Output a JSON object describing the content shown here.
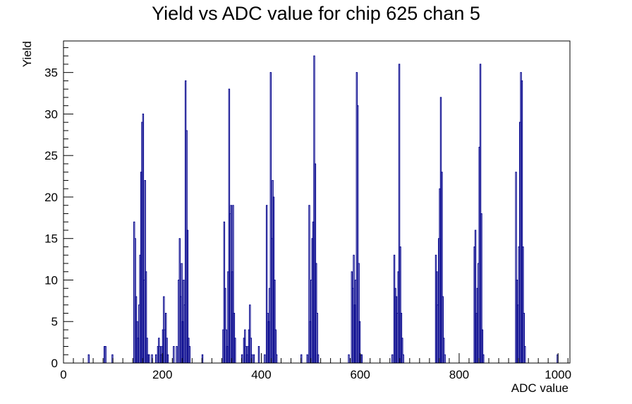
{
  "chart_data": {
    "type": "bar",
    "title": "Yield vs ADC value for chip 625 chan 5",
    "xlabel": "ADC value",
    "ylabel": "Yield",
    "xlim": [
      0,
      1024
    ],
    "ylim": [
      0,
      38.8
    ],
    "x_ticks": [
      0,
      200,
      400,
      600,
      800,
      1000
    ],
    "y_ticks": [
      0,
      5,
      10,
      15,
      20,
      25,
      30,
      35
    ],
    "line_color": "#00008b",
    "bin_width": 2,
    "bins": [
      [
        50,
        1
      ],
      [
        82,
        2
      ],
      [
        84,
        2
      ],
      [
        98,
        1
      ],
      [
        142,
        17
      ],
      [
        144,
        15
      ],
      [
        146,
        8
      ],
      [
        148,
        5
      ],
      [
        150,
        3
      ],
      [
        152,
        7
      ],
      [
        154,
        13
      ],
      [
        156,
        23
      ],
      [
        158,
        29
      ],
      [
        160,
        30
      ],
      [
        162,
        10
      ],
      [
        164,
        22
      ],
      [
        166,
        11
      ],
      [
        168,
        3
      ],
      [
        170,
        1
      ],
      [
        172,
        1
      ],
      [
        178,
        1
      ],
      [
        186,
        1
      ],
      [
        190,
        2
      ],
      [
        192,
        3
      ],
      [
        194,
        2
      ],
      [
        196,
        1
      ],
      [
        198,
        2
      ],
      [
        200,
        4
      ],
      [
        202,
        8
      ],
      [
        204,
        4
      ],
      [
        206,
        6
      ],
      [
        208,
        3
      ],
      [
        210,
        1
      ],
      [
        222,
        2
      ],
      [
        228,
        2
      ],
      [
        232,
        10
      ],
      [
        234,
        15
      ],
      [
        236,
        8
      ],
      [
        238,
        12
      ],
      [
        240,
        5
      ],
      [
        242,
        10
      ],
      [
        244,
        7
      ],
      [
        246,
        34
      ],
      [
        248,
        28
      ],
      [
        250,
        16
      ],
      [
        252,
        3
      ],
      [
        254,
        2
      ],
      [
        280,
        1
      ],
      [
        322,
        4
      ],
      [
        324,
        17
      ],
      [
        326,
        9
      ],
      [
        328,
        4
      ],
      [
        330,
        2
      ],
      [
        332,
        11
      ],
      [
        334,
        33
      ],
      [
        336,
        18
      ],
      [
        338,
        19
      ],
      [
        340,
        11
      ],
      [
        342,
        19
      ],
      [
        344,
        6
      ],
      [
        346,
        3
      ],
      [
        360,
        1
      ],
      [
        364,
        3
      ],
      [
        366,
        4
      ],
      [
        368,
        2
      ],
      [
        370,
        1
      ],
      [
        372,
        2
      ],
      [
        374,
        4
      ],
      [
        376,
        7
      ],
      [
        378,
        3
      ],
      [
        380,
        1
      ],
      [
        384,
        1
      ],
      [
        394,
        2
      ],
      [
        406,
        1
      ],
      [
        410,
        19
      ],
      [
        412,
        6
      ],
      [
        414,
        5
      ],
      [
        416,
        9
      ],
      [
        418,
        35
      ],
      [
        420,
        15
      ],
      [
        422,
        22
      ],
      [
        424,
        20
      ],
      [
        426,
        10
      ],
      [
        428,
        4
      ],
      [
        430,
        1
      ],
      [
        480,
        1
      ],
      [
        492,
        1
      ],
      [
        496,
        19
      ],
      [
        498,
        5
      ],
      [
        500,
        10
      ],
      [
        502,
        15
      ],
      [
        504,
        17
      ],
      [
        506,
        37
      ],
      [
        508,
        24
      ],
      [
        510,
        12
      ],
      [
        512,
        6
      ],
      [
        514,
        1
      ],
      [
        576,
        1
      ],
      [
        582,
        11
      ],
      [
        584,
        9
      ],
      [
        586,
        13
      ],
      [
        588,
        7
      ],
      [
        590,
        10
      ],
      [
        592,
        35
      ],
      [
        594,
        31
      ],
      [
        596,
        12
      ],
      [
        598,
        5
      ],
      [
        600,
        1
      ],
      [
        602,
        1
      ],
      [
        664,
        1
      ],
      [
        668,
        13
      ],
      [
        670,
        9
      ],
      [
        672,
        8
      ],
      [
        674,
        6
      ],
      [
        676,
        11
      ],
      [
        678,
        36
      ],
      [
        680,
        14
      ],
      [
        682,
        6
      ],
      [
        684,
        3
      ],
      [
        686,
        1
      ],
      [
        752,
        13
      ],
      [
        754,
        11
      ],
      [
        756,
        7
      ],
      [
        758,
        15
      ],
      [
        760,
        21
      ],
      [
        762,
        32
      ],
      [
        764,
        23
      ],
      [
        766,
        8
      ],
      [
        768,
        3
      ],
      [
        770,
        1
      ],
      [
        830,
        14
      ],
      [
        832,
        16
      ],
      [
        834,
        6
      ],
      [
        836,
        9
      ],
      [
        838,
        12
      ],
      [
        840,
        26
      ],
      [
        842,
        36
      ],
      [
        844,
        18
      ],
      [
        846,
        4
      ],
      [
        848,
        1
      ],
      [
        914,
        23
      ],
      [
        916,
        10
      ],
      [
        918,
        7
      ],
      [
        920,
        14
      ],
      [
        922,
        29
      ],
      [
        924,
        35
      ],
      [
        926,
        34
      ],
      [
        928,
        14
      ],
      [
        930,
        6
      ],
      [
        932,
        2
      ],
      [
        998,
        1
      ]
    ]
  }
}
